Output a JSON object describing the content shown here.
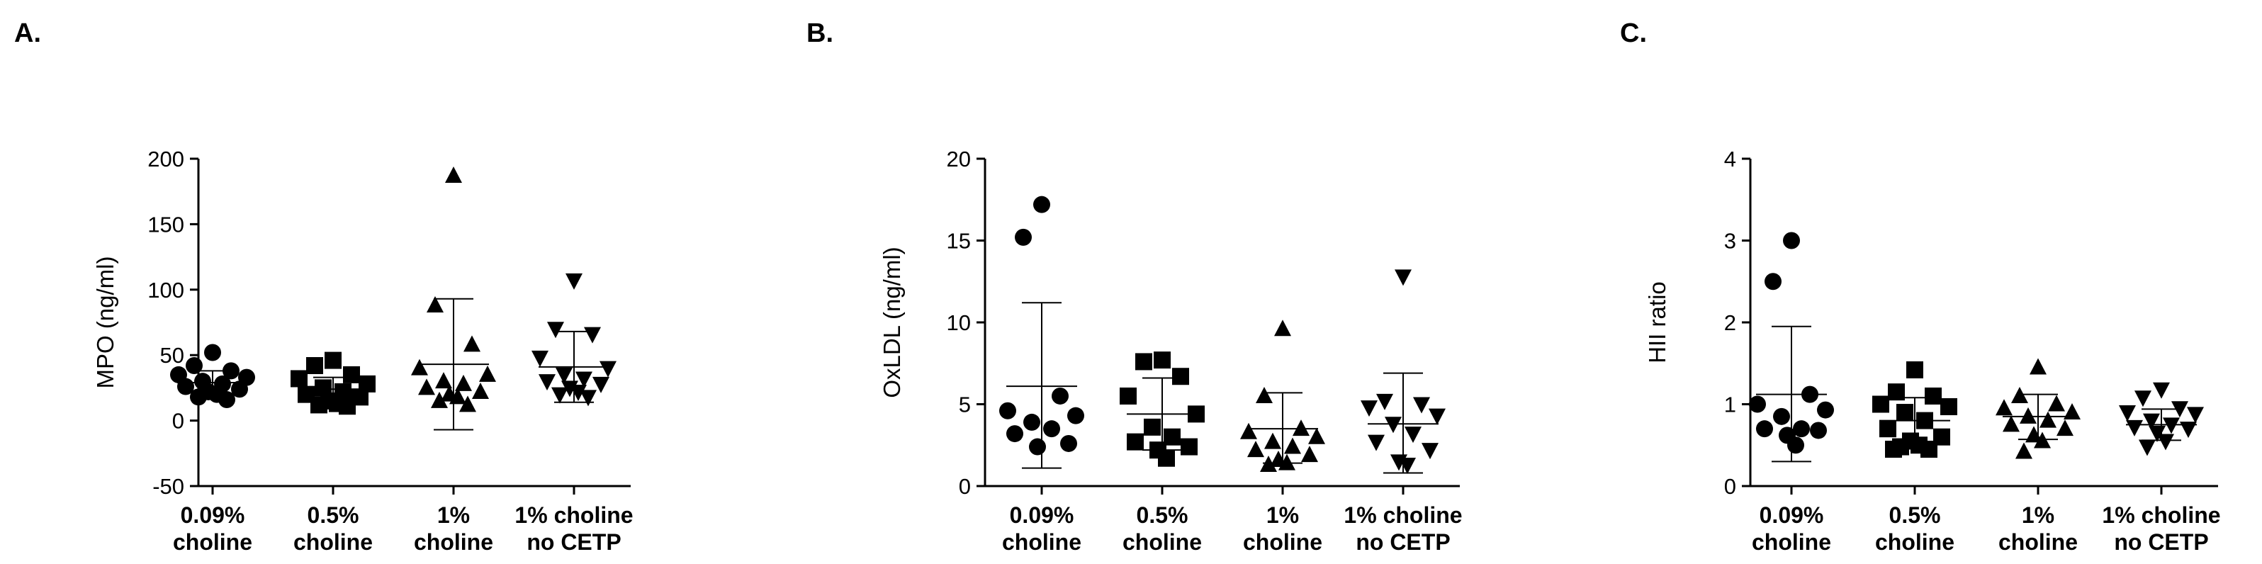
{
  "chart_data": [
    {
      "type": "scatter",
      "panel_label": "A.",
      "ylabel": "MPO (ng/ml)",
      "ylim": [
        -50,
        200
      ],
      "yticks": [
        -50,
        0,
        50,
        100,
        150,
        200
      ],
      "categories": [
        {
          "lines": [
            "0.09%",
            "choline"
          ],
          "marker": "circle",
          "points": [
            52,
            42,
            38,
            35,
            33,
            30,
            28,
            26,
            24,
            22,
            20,
            18,
            16
          ],
          "mean": 29,
          "sd_low": 20,
          "sd_high": 38
        },
        {
          "lines": [
            "0.5%",
            "choline"
          ],
          "marker": "square",
          "points": [
            46,
            42,
            35,
            32,
            28,
            25,
            22,
            20,
            18,
            15,
            13,
            12,
            11
          ],
          "mean": 24,
          "sd_low": 15,
          "sd_high": 33
        },
        {
          "lines": [
            "1%",
            "choline"
          ],
          "marker": "triangle-up",
          "points": [
            187,
            88,
            58,
            40,
            35,
            30,
            28,
            25,
            22,
            20,
            18,
            15,
            12
          ],
          "mean": 43,
          "sd_low": -7,
          "sd_high": 93
        },
        {
          "lines": [
            "1% choline",
            "no CETP"
          ],
          "marker": "triangle-down",
          "points": [
            107,
            70,
            66,
            48,
            40,
            35,
            32,
            30,
            28,
            25,
            22,
            20,
            18
          ],
          "mean": 41,
          "sd_low": 14,
          "sd_high": 68
        }
      ]
    },
    {
      "type": "scatter",
      "panel_label": "B.",
      "ylabel": "OxLDL (ng/ml)",
      "ylim": [
        0,
        20
      ],
      "yticks": [
        0,
        5,
        10,
        15,
        20
      ],
      "categories": [
        {
          "lines": [
            "0.09%",
            "choline"
          ],
          "marker": "circle",
          "points": [
            17.2,
            15.2,
            5.5,
            4.6,
            4.3,
            3.9,
            3.5,
            3.2,
            2.6,
            2.4
          ],
          "mean": 6.1,
          "sd_low": 1.1,
          "sd_high": 11.2
        },
        {
          "lines": [
            "0.5%",
            "choline"
          ],
          "marker": "square",
          "points": [
            7.7,
            7.6,
            6.7,
            5.5,
            4.4,
            3.6,
            3.0,
            2.7,
            2.4,
            2.2,
            1.7
          ],
          "mean": 4.4,
          "sd_low": 2.2,
          "sd_high": 6.6
        },
        {
          "lines": [
            "1%",
            "choline"
          ],
          "marker": "triangle-up",
          "points": [
            9.6,
            5.5,
            3.5,
            3.3,
            3.0,
            2.7,
            2.4,
            2.2,
            1.9,
            1.6,
            1.4,
            1.3
          ],
          "mean": 3.5,
          "sd_low": 1.4,
          "sd_high": 5.7
        },
        {
          "lines": [
            "1% choline",
            "no CETP"
          ],
          "marker": "triangle-down",
          "points": [
            12.8,
            5.2,
            5.0,
            4.8,
            4.3,
            3.8,
            3.2,
            2.7,
            2.2,
            1.5,
            1.3
          ],
          "mean": 3.8,
          "sd_low": 0.8,
          "sd_high": 6.9
        }
      ]
    },
    {
      "type": "scatter",
      "panel_label": "C.",
      "ylabel": "HII ratio",
      "ylim": [
        0,
        4
      ],
      "yticks": [
        0,
        1,
        2,
        3,
        4
      ],
      "categories": [
        {
          "lines": [
            "0.09%",
            "choline"
          ],
          "marker": "circle",
          "points": [
            3.0,
            2.5,
            1.12,
            1.0,
            0.93,
            0.85,
            0.7,
            0.7,
            0.68,
            0.62,
            0.5
          ],
          "mean": 1.12,
          "sd_low": 0.3,
          "sd_high": 1.95
        },
        {
          "lines": [
            "0.5%",
            "choline"
          ],
          "marker": "square",
          "points": [
            1.42,
            1.15,
            1.1,
            1.0,
            0.97,
            0.9,
            0.8,
            0.7,
            0.6,
            0.55,
            0.5,
            0.48,
            0.45,
            0.45
          ],
          "mean": 0.8,
          "sd_low": 0.52,
          "sd_high": 1.08
        },
        {
          "lines": [
            "1%",
            "choline"
          ],
          "marker": "triangle-up",
          "points": [
            1.45,
            1.1,
            1.0,
            0.95,
            0.9,
            0.85,
            0.8,
            0.75,
            0.7,
            0.62,
            0.55,
            0.42
          ],
          "mean": 0.85,
          "sd_low": 0.57,
          "sd_high": 1.12
        },
        {
          "lines": [
            "1% choline",
            "no CETP"
          ],
          "marker": "triangle-down",
          "points": [
            1.18,
            1.08,
            0.95,
            0.9,
            0.88,
            0.8,
            0.75,
            0.72,
            0.7,
            0.65,
            0.55,
            0.48
          ],
          "mean": 0.75,
          "sd_low": 0.56,
          "sd_high": 0.94
        }
      ]
    }
  ]
}
